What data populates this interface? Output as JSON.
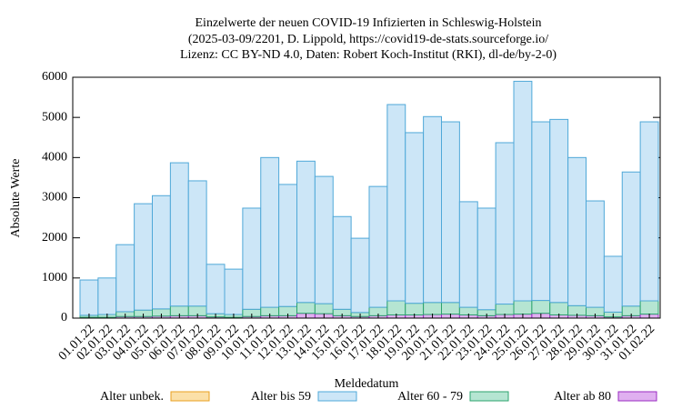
{
  "chart_data": {
    "type": "bar",
    "stacked": true,
    "title": [
      "Einzelwerte der neuen COVID-19 Infizierten in Schleswig-Holstein",
      "(2025-03-09/2201, D. Lippold, https://covid19-de-stats.sourceforge.io/",
      "Lizenz: CC BY-ND 4.0, Daten: Robert Koch-Institut (RKI), dl-de/by-2-0)"
    ],
    "x_label": "Meldedatum",
    "y_label": "Absolute Werte",
    "categories": [
      "01.01.22",
      "02.01.22",
      "03.01.22",
      "04.01.22",
      "05.01.22",
      "06.01.22",
      "07.01.22",
      "08.01.22",
      "09.01.22",
      "10.01.22",
      "11.01.22",
      "12.01.22",
      "13.01.22",
      "14.01.22",
      "15.01.22",
      "16.01.22",
      "17.01.22",
      "18.01.22",
      "19.01.22",
      "20.01.22",
      "21.01.22",
      "22.01.22",
      "23.01.22",
      "24.01.22",
      "25.01.22",
      "26.01.22",
      "27.01.22",
      "28.01.22",
      "29.01.22",
      "30.01.22",
      "31.01.22",
      "01.02.22"
    ],
    "series": [
      {
        "name": "Alter unbek.",
        "color": "#e8a020",
        "fill": "#fbe0a8",
        "values": [
          0,
          0,
          0,
          0,
          0,
          0,
          0,
          0,
          0,
          0,
          0,
          0,
          0,
          0,
          0,
          0,
          0,
          0,
          0,
          0,
          0,
          0,
          0,
          0,
          0,
          0,
          0,
          0,
          0,
          0,
          0,
          0
        ]
      },
      {
        "name": "Alter bis 59",
        "color": "#4fa8d8",
        "fill": "#cce6f7",
        "values": [
          880,
          910,
          1670,
          2650,
          2820,
          3570,
          3120,
          1230,
          1130,
          2520,
          3730,
          3040,
          3520,
          3170,
          2310,
          1850,
          3010,
          4890,
          4250,
          4630,
          4500,
          2630,
          2530,
          4020,
          5470,
          4450,
          4560,
          3690,
          2650,
          1390,
          3340,
          4460
        ]
      },
      {
        "name": "Alter 60 - 79",
        "color": "#2ca36e",
        "fill": "#b5e5d2",
        "values": [
          50,
          70,
          120,
          160,
          180,
          240,
          240,
          80,
          70,
          180,
          210,
          230,
          270,
          250,
          160,
          100,
          210,
          350,
          290,
          300,
          290,
          190,
          150,
          260,
          330,
          320,
          310,
          240,
          210,
          120,
          240,
          330
        ]
      },
      {
        "name": "Alter ab 80",
        "color": "#9a2bc2",
        "fill": "#e0b0f0",
        "values": [
          20,
          20,
          40,
          40,
          50,
          60,
          60,
          30,
          20,
          40,
          60,
          60,
          120,
          110,
          60,
          40,
          60,
          80,
          80,
          90,
          100,
          80,
          60,
          90,
          100,
          120,
          80,
          70,
          60,
          30,
          60,
          100
        ]
      }
    ],
    "stack_order": [
      3,
      2,
      1,
      0
    ],
    "ylim": [
      0,
      6000
    ],
    "yticks": [
      0,
      1000,
      2000,
      3000,
      4000,
      5000,
      6000
    ],
    "grid": false
  }
}
